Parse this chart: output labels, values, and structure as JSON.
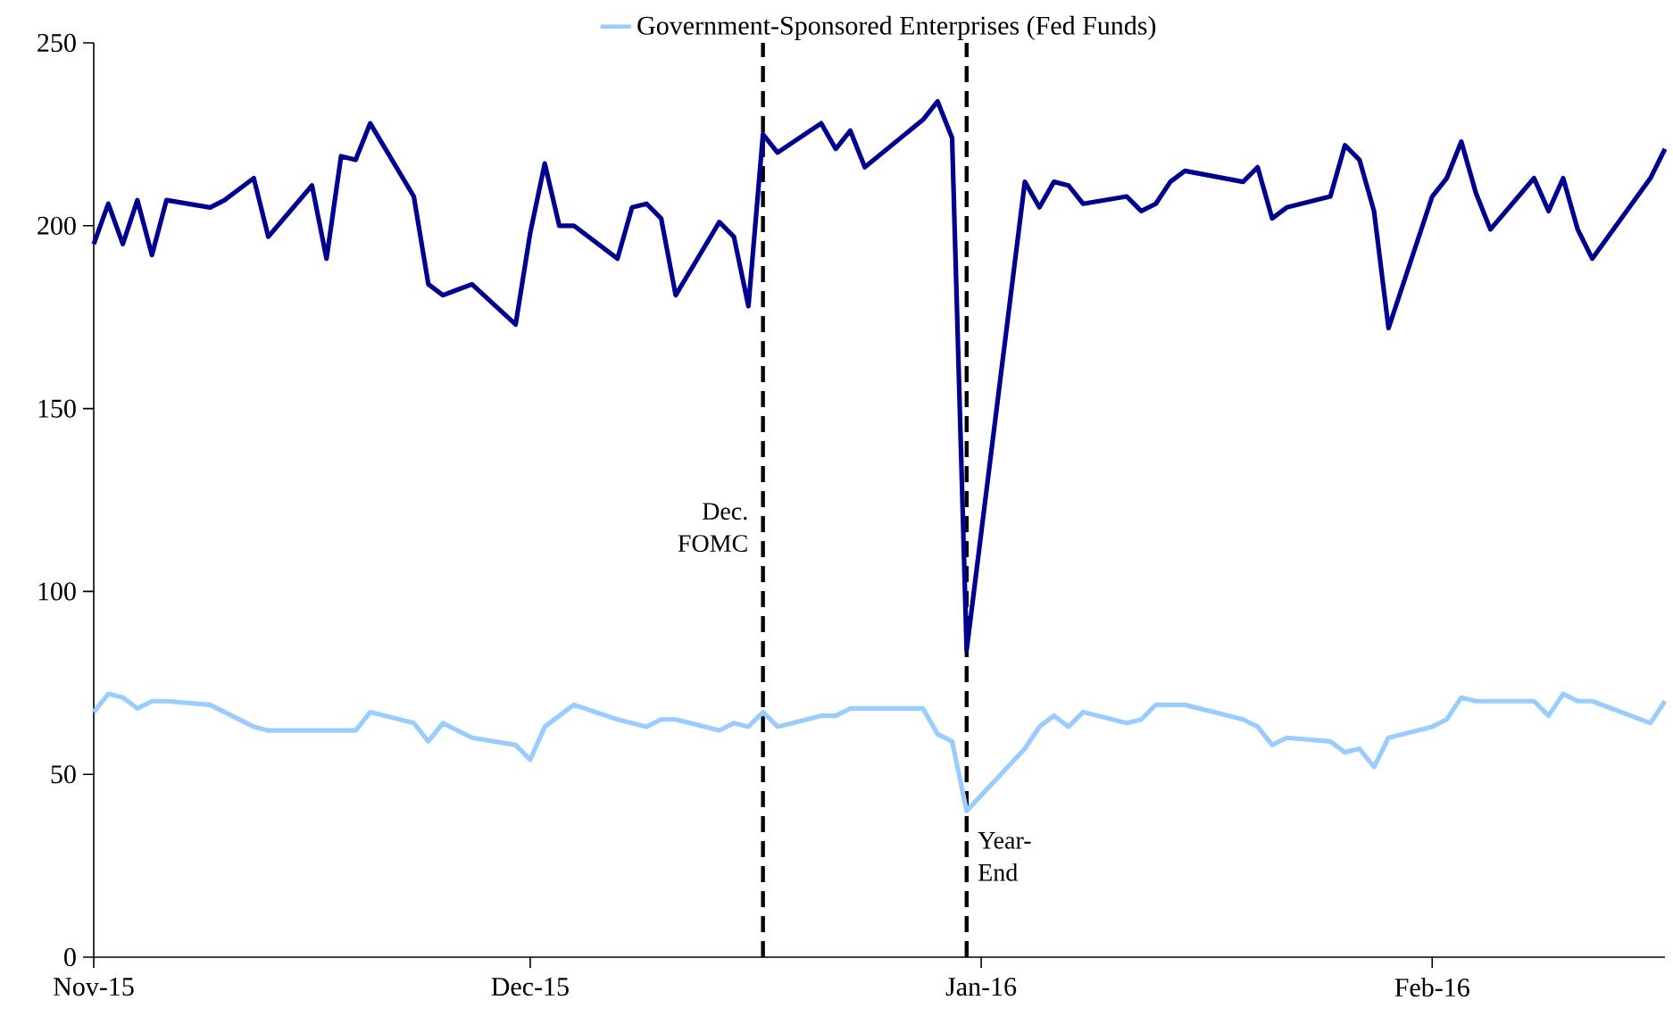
{
  "chart_data": {
    "type": "line",
    "series": [
      {
        "color": "#000090",
        "x": [
          "2015-11-01",
          "2015-11-02",
          "2015-11-03",
          "2015-11-04",
          "2015-11-05",
          "2015-11-06",
          "2015-11-09",
          "2015-11-10",
          "2015-11-12",
          "2015-11-13",
          "2015-11-16",
          "2015-11-17",
          "2015-11-18",
          "2015-11-19",
          "2015-11-20",
          "2015-11-23",
          "2015-11-24",
          "2015-11-25",
          "2015-11-27",
          "2015-11-30",
          "2015-12-01",
          "2015-12-02",
          "2015-12-03",
          "2015-12-04",
          "2015-12-07",
          "2015-12-08",
          "2015-12-09",
          "2015-12-10",
          "2015-12-11",
          "2015-12-14",
          "2015-12-15",
          "2015-12-16",
          "2015-12-17",
          "2015-12-18",
          "2015-12-21",
          "2015-12-22",
          "2015-12-23",
          "2015-12-24",
          "2015-12-28",
          "2015-12-29",
          "2015-12-30",
          "2015-12-31",
          "2016-01-04",
          "2016-01-05",
          "2016-01-06",
          "2016-01-07",
          "2016-01-08",
          "2016-01-11",
          "2016-01-12",
          "2016-01-13",
          "2016-01-14",
          "2016-01-15",
          "2016-01-19",
          "2016-01-20",
          "2016-01-21",
          "2016-01-22",
          "2016-01-25",
          "2016-01-26",
          "2016-01-27",
          "2016-01-28",
          "2016-01-29",
          "2016-02-01",
          "2016-02-02",
          "2016-02-03",
          "2016-02-04",
          "2016-02-05",
          "2016-02-08",
          "2016-02-09",
          "2016-02-10",
          "2016-02-11",
          "2016-02-12",
          "2016-02-16",
          "2016-02-17"
        ],
        "values": [
          195,
          206,
          195,
          207,
          192,
          207,
          205,
          207,
          213,
          197,
          211,
          191,
          219,
          218,
          228,
          208,
          184,
          181,
          184,
          173,
          198,
          217,
          200,
          200,
          191,
          205,
          206,
          202,
          181,
          201,
          197,
          178,
          225,
          220,
          228,
          221,
          226,
          216,
          229,
          234,
          224,
          84,
          212,
          205,
          212,
          211,
          206,
          208,
          204,
          206,
          212,
          215,
          212,
          216,
          202,
          205,
          208,
          222,
          218,
          204,
          172,
          208,
          213,
          223,
          209,
          199,
          213,
          204,
          213,
          199,
          191,
          213,
          221
        ]
      },
      {
        "name": "Government-Sponsored Enterprises (Fed Funds)",
        "color": "#99ccff",
        "x": [
          "2015-11-01",
          "2015-11-02",
          "2015-11-03",
          "2015-11-04",
          "2015-11-05",
          "2015-11-06",
          "2015-11-09",
          "2015-11-12",
          "2015-11-13",
          "2015-11-19",
          "2015-11-20",
          "2015-11-23",
          "2015-11-24",
          "2015-11-25",
          "2015-11-27",
          "2015-11-30",
          "2015-12-01",
          "2015-12-02",
          "2015-12-04",
          "2015-12-07",
          "2015-12-09",
          "2015-12-10",
          "2015-12-11",
          "2015-12-14",
          "2015-12-15",
          "2015-12-16",
          "2015-12-17",
          "2015-12-18",
          "2015-12-21",
          "2015-12-22",
          "2015-12-23",
          "2015-12-28",
          "2015-12-29",
          "2015-12-30",
          "2015-12-31",
          "2016-01-04",
          "2016-01-05",
          "2016-01-06",
          "2016-01-07",
          "2016-01-08",
          "2016-01-11",
          "2016-01-12",
          "2016-01-13",
          "2016-01-15",
          "2016-01-19",
          "2016-01-20",
          "2016-01-21",
          "2016-01-22",
          "2016-01-25",
          "2016-01-26",
          "2016-01-27",
          "2016-01-28",
          "2016-01-29",
          "2016-02-01",
          "2016-02-02",
          "2016-02-03",
          "2016-02-04",
          "2016-02-08",
          "2016-02-09",
          "2016-02-10",
          "2016-02-11",
          "2016-02-12",
          "2016-02-16",
          "2016-02-17"
        ],
        "values": [
          67,
          72,
          71,
          68,
          70,
          70,
          69,
          63,
          62,
          62,
          67,
          64,
          59,
          64,
          60,
          58,
          54,
          63,
          69,
          65,
          63,
          65,
          65,
          62,
          64,
          63,
          67,
          63,
          66,
          66,
          68,
          68,
          61,
          59,
          40,
          57,
          63,
          66,
          63,
          67,
          64,
          65,
          69,
          69,
          65,
          63,
          58,
          60,
          59,
          56,
          57,
          52,
          60,
          63,
          65,
          71,
          70,
          70,
          66,
          72,
          70,
          70,
          64,
          70
        ]
      }
    ],
    "xlim": [
      "2015-11-01",
      "2016-02-17"
    ],
    "xticks": [
      {
        "value": "2015-11-01",
        "label": "Nov-15"
      },
      {
        "value": "2015-12-01",
        "label": "Dec-15"
      },
      {
        "value": "2016-01-01",
        "label": "Jan-16"
      },
      {
        "value": "2016-02-01",
        "label": "Feb-16"
      }
    ],
    "ylim": [
      0,
      250
    ],
    "yticks": [
      0,
      50,
      100,
      150,
      200,
      250
    ],
    "ref_lines": [
      {
        "axis": "x",
        "value": "2015-12-17",
        "label": "Dec. FOMC",
        "color": "#000000",
        "line_style": "dashed"
      },
      {
        "axis": "x",
        "value": "2015-12-31",
        "label": "Year-End",
        "color": "#000000",
        "line_style": "dashed"
      }
    ],
    "grid": false,
    "legend": "top",
    "marker": "none",
    "line_style": "solid"
  }
}
